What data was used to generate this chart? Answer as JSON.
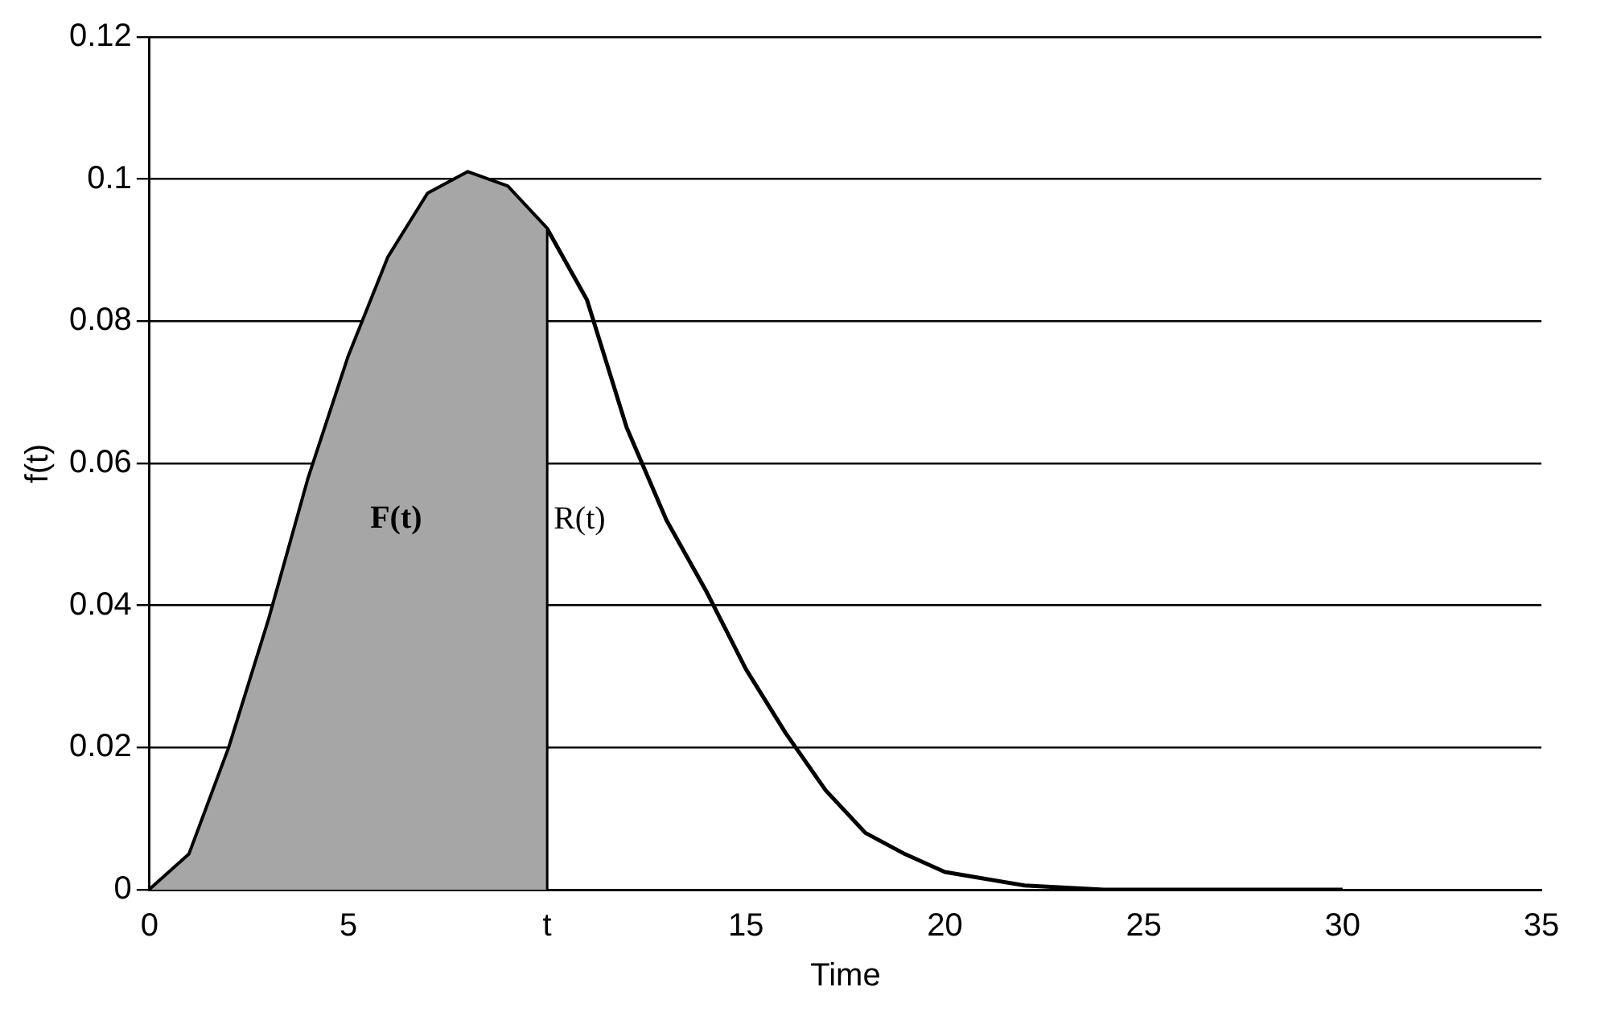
{
  "chart_data": {
    "type": "line",
    "xlabel": "Time",
    "ylabel": "f(t)",
    "xlim": [
      0,
      35
    ],
    "xticks": [
      0,
      5,
      {
        "value": 10,
        "label": "t"
      },
      15,
      20,
      25,
      30,
      35
    ],
    "ylim": [
      0,
      0.12
    ],
    "yticks": [
      0,
      0.02,
      0.04,
      0.06,
      0.08,
      0.1,
      0.12
    ],
    "grid": "y",
    "legend": false,
    "marker": "none",
    "line_style": "solid",
    "series": [
      {
        "type": "area",
        "color": "#a6a6a6",
        "x": [
          0,
          1,
          2,
          3,
          4,
          5,
          6,
          7,
          8,
          9,
          10,
          10
        ],
        "values": [
          0,
          0.005,
          0.02,
          0.038,
          0.058,
          0.075,
          0.089,
          0.098,
          0.101,
          0.099,
          0.093,
          0
        ]
      },
      {
        "type": "line",
        "color": "#000000",
        "x": [
          0,
          1,
          2,
          3,
          4,
          5,
          6,
          7,
          8,
          9,
          10,
          11,
          12,
          13,
          14,
          15,
          16,
          17,
          18,
          19,
          20,
          22,
          24,
          30
        ],
        "values": [
          0,
          0.005,
          0.02,
          0.038,
          0.058,
          0.075,
          0.089,
          0.098,
          0.101,
          0.099,
          0.093,
          0.083,
          0.065,
          0.052,
          0.042,
          0.031,
          0.022,
          0.014,
          0.008,
          0.005,
          0.0025,
          0.0006,
          0,
          0
        ]
      }
    ],
    "annotations": [
      "F(t)",
      "R(t)"
    ]
  }
}
